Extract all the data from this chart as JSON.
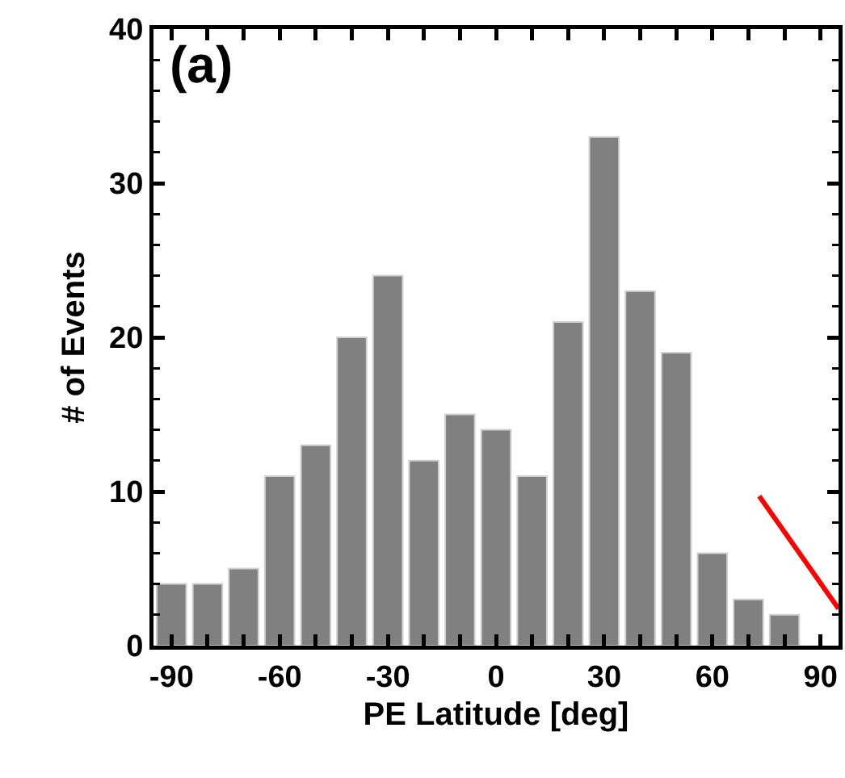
{
  "chart_data": {
    "type": "histogram",
    "xlabel": "PE Latitude [deg]",
    "ylabel": "# of Events",
    "annotations": [
      "(a)"
    ],
    "bins": [
      -95,
      -85,
      -75,
      -65,
      -55,
      -45,
      -35,
      -25,
      -15,
      -5,
      5,
      15,
      25,
      35,
      45,
      55,
      65,
      75,
      85
    ],
    "values": [
      4,
      4,
      5,
      11,
      13,
      20,
      24,
      12,
      15,
      14,
      11,
      21,
      33,
      23,
      19,
      6,
      3,
      2
    ],
    "color": "#808080",
    "series": [
      {
        "type": "line",
        "color": "#ff0000",
        "x": [
          73,
          95
        ],
        "values": [
          9.7,
          2.4
        ]
      }
    ],
    "xlim": [
      -95,
      95
    ],
    "ylim": [
      0,
      40
    ],
    "xticks": [
      -90,
      {
        "value": -80,
        "label": null
      },
      {
        "value": -70,
        "label": null
      },
      -60,
      {
        "value": -50,
        "label": null
      },
      {
        "value": -40,
        "label": null
      },
      -30,
      {
        "value": -20,
        "label": null
      },
      {
        "value": -10,
        "label": null
      },
      0,
      {
        "value": 10,
        "label": null
      },
      {
        "value": 20,
        "label": null
      },
      30,
      {
        "value": 40,
        "label": null
      },
      {
        "value": 50,
        "label": null
      },
      60,
      {
        "value": 70,
        "label": null
      },
      {
        "value": 80,
        "label": null
      },
      90
    ],
    "yticks": [
      0,
      10,
      20,
      30,
      40
    ],
    "grid": false
  }
}
